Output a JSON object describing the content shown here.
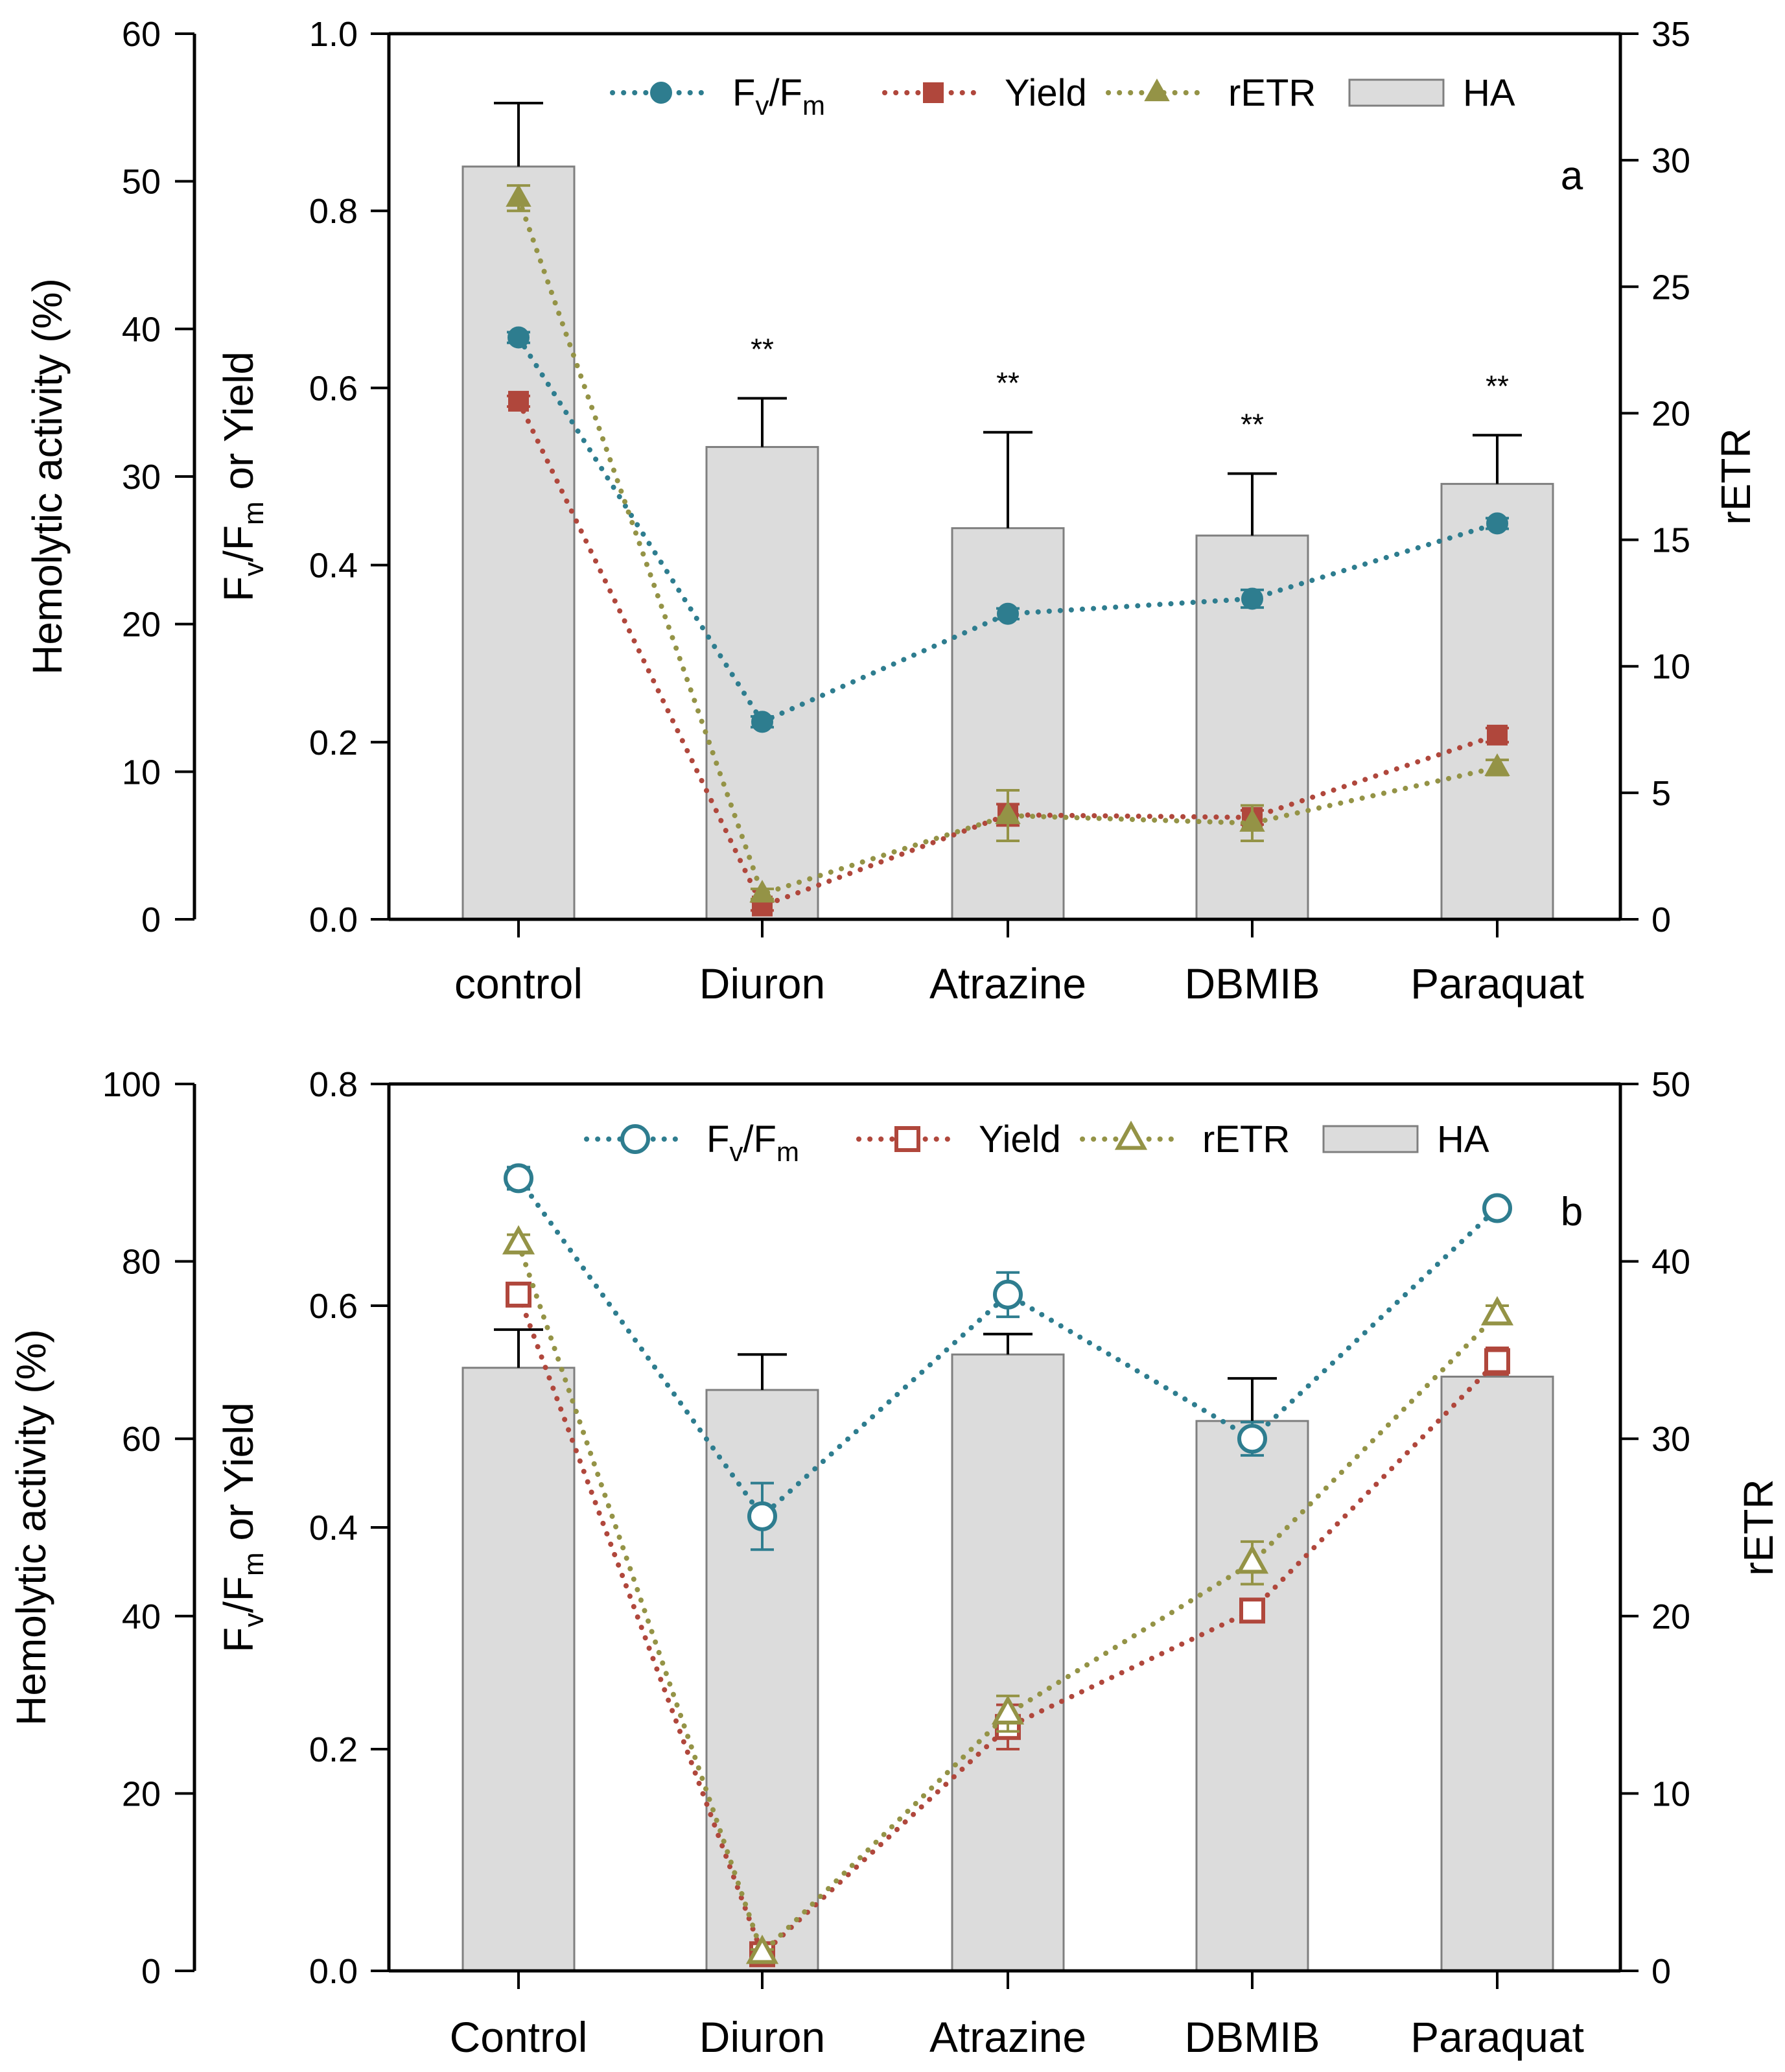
{
  "colors": {
    "fvfm": "#2e7d8f",
    "yield": "#b0473c",
    "retr": "#949346",
    "bar_fill": "#dcdcdc",
    "bar_stroke": "#7f7f7f",
    "axis": "#000000"
  },
  "chart_data": [
    {
      "type": "bar+line",
      "panel_letter": "a",
      "marker_style": "filled",
      "categories": [
        "control",
        "Diuron",
        "Atrazine",
        "DBMIB",
        "Paraquat"
      ],
      "axes": {
        "left": {
          "title": "Hemolytic activity (%)",
          "range": [
            0,
            60
          ],
          "ticks": [
            0,
            10,
            20,
            30,
            40,
            50,
            60
          ]
        },
        "mid": {
          "title_main": "F",
          "title_sub1": "v",
          "title_slash": "/F",
          "title_sub2": "m",
          "title_rest": " or Yield",
          "range": [
            0,
            1.0
          ],
          "ticks": [
            0,
            0.2,
            0.4,
            0.6,
            0.8,
            1.0
          ],
          "tick_labels": [
            "0.0",
            "0.2",
            "0.4",
            "0.6",
            "0.8",
            "1.0"
          ]
        },
        "right": {
          "title": "rETR",
          "range": [
            0,
            35
          ],
          "ticks": [
            0,
            5,
            10,
            15,
            20,
            25,
            30,
            35
          ]
        }
      },
      "legend": {
        "fvfm_main": "F",
        "fvfm_sub1": "v",
        "fvfm_slash": "/F",
        "fvfm_sub2": "m",
        "yield": "Yield",
        "retr": "rETR",
        "ha": "HA"
      },
      "ha": {
        "axis": "left",
        "values": [
          51.0,
          32.0,
          26.5,
          26.0,
          29.5
        ],
        "errors": [
          4.3,
          3.3,
          6.5,
          4.2,
          3.3
        ],
        "significance": [
          "",
          "**",
          "**",
          "**",
          "**"
        ]
      },
      "series": [
        {
          "name": "Fv/Fm",
          "axis": "mid",
          "color_key": "fvfm",
          "marker": "circle",
          "values": [
            0.657,
            0.223,
            0.345,
            0.362,
            0.447
          ],
          "errors": [
            0.006,
            0.006,
            0.006,
            0.01,
            0.006
          ]
        },
        {
          "name": "Yield",
          "axis": "mid",
          "color_key": "yield",
          "marker": "square",
          "values": [
            0.585,
            0.015,
            0.118,
            0.115,
            0.208
          ],
          "errors": [
            0.006,
            0.005,
            0.012,
            0.008,
            0.008
          ]
        },
        {
          "name": "rETR",
          "axis": "right",
          "color_key": "retr",
          "marker": "triangle",
          "values": [
            28.5,
            1.0,
            4.1,
            3.8,
            6.0
          ],
          "errors": [
            0.5,
            0.2,
            1.0,
            0.7,
            0.3
          ]
        }
      ]
    },
    {
      "type": "bar+line",
      "panel_letter": "b",
      "marker_style": "open",
      "categories": [
        "Control",
        "Diuron",
        "Atrazine",
        "DBMIB",
        "Paraquat"
      ],
      "axes": {
        "left": {
          "title": "Hemolytic activity (%)",
          "range": [
            0,
            100
          ],
          "ticks": [
            0,
            20,
            40,
            60,
            80,
            100
          ]
        },
        "mid": {
          "title_main": "F",
          "title_sub1": "v",
          "title_slash": "/F",
          "title_sub2": "m",
          "title_rest": " or Yield",
          "range": [
            0,
            0.8
          ],
          "ticks": [
            0,
            0.2,
            0.4,
            0.6,
            0.8
          ],
          "tick_labels": [
            "0.0",
            "0.2",
            "0.4",
            "0.6",
            "0.8"
          ]
        },
        "right": {
          "title": "rETR",
          "range": [
            0,
            50
          ],
          "ticks": [
            0,
            10,
            20,
            30,
            40,
            50
          ]
        }
      },
      "legend": {
        "fvfm_main": "F",
        "fvfm_sub1": "v",
        "fvfm_slash": "/F",
        "fvfm_sub2": "m",
        "yield": "Yield",
        "retr": "rETR",
        "ha": "HA"
      },
      "ha": {
        "axis": "left",
        "values": [
          68.0,
          65.5,
          69.5,
          62.0,
          67.0
        ],
        "errors": [
          4.3,
          4.0,
          2.3,
          4.8,
          0
        ],
        "significance": [
          "",
          "",
          "",
          "",
          ""
        ]
      },
      "series": [
        {
          "name": "Fv/Fm",
          "axis": "mid",
          "color_key": "fvfm",
          "marker": "circle",
          "values": [
            0.715,
            0.41,
            0.61,
            0.48,
            0.688
          ],
          "errors": [
            0.01,
            0.03,
            0.02,
            0.015,
            0.005
          ]
        },
        {
          "name": "Yield",
          "axis": "mid",
          "color_key": "yield",
          "marker": "square",
          "values": [
            0.61,
            0.015,
            0.22,
            0.325,
            0.55
          ],
          "errors": [
            0.01,
            0.003,
            0.02,
            0.01,
            0.012
          ]
        },
        {
          "name": "rETR",
          "axis": "right",
          "color_key": "retr",
          "marker": "triangle",
          "values": [
            41.0,
            1.0,
            14.5,
            23.0,
            37.0
          ],
          "errors": [
            0.5,
            0.2,
            1.0,
            1.2,
            0.5
          ]
        }
      ]
    }
  ]
}
